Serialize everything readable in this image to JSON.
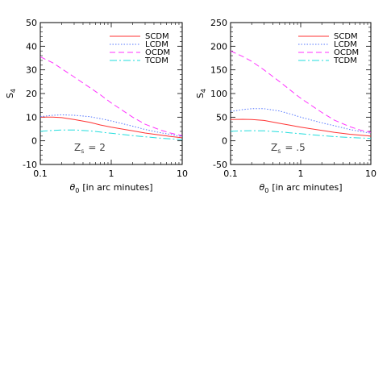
{
  "chart_data": [
    {
      "type": "line",
      "ylabel": "S",
      "ylabel_sub": "4",
      "xlabel_symbol": "θ",
      "xlabel_sub": "0",
      "xlabel_text": "[in arc minutes]",
      "xscale": "log",
      "xlim": [
        0.1,
        10
      ],
      "ylim": [
        -10,
        50
      ],
      "yticks": [
        -10,
        0,
        10,
        20,
        30,
        40,
        50
      ],
      "xticks": [
        0.1,
        1,
        10
      ],
      "xtick_labels": [
        "0.1",
        "1",
        "10"
      ],
      "annotation": {
        "var": "Z",
        "sub": "s",
        "text": "= 2"
      },
      "legend_position": "top-right",
      "series": [
        {
          "name": "SCDM",
          "color": "#ff3333",
          "dash": "",
          "x": [
            0.1,
            0.15,
            0.2,
            0.3,
            0.5,
            0.7,
            1,
            2,
            3,
            5,
            7,
            10
          ],
          "y": [
            10,
            10,
            9.8,
            9,
            7.8,
            6.7,
            5.8,
            4.2,
            3.3,
            2.4,
            1.8,
            1.3
          ]
        },
        {
          "name": "LCDM",
          "color": "#5577ff",
          "dash": "1.5,2",
          "x": [
            0.1,
            0.15,
            0.2,
            0.3,
            0.5,
            0.7,
            1,
            2,
            3,
            5,
            7,
            10
          ],
          "y": [
            10.2,
            10.8,
            11,
            10.8,
            10.2,
            9.4,
            8.4,
            6.2,
            4.8,
            3.4,
            2.6,
            1.8
          ]
        },
        {
          "name": "OCDM",
          "color": "#ff33ff",
          "dash": "7,4",
          "x": [
            0.1,
            0.15,
            0.2,
            0.3,
            0.5,
            0.7,
            1,
            2,
            3,
            5,
            7,
            10
          ],
          "y": [
            35.5,
            33,
            30.5,
            27,
            22.5,
            19.5,
            16,
            10,
            7,
            4.5,
            3.2,
            2.2
          ]
        },
        {
          "name": "TCDM",
          "color": "#22dddd",
          "dash": "9,3,2,3",
          "x": [
            0.1,
            0.15,
            0.2,
            0.3,
            0.5,
            0.7,
            1,
            2,
            3,
            5,
            7,
            10
          ],
          "y": [
            4,
            4.4,
            4.6,
            4.6,
            4.2,
            3.7,
            3.2,
            2.2,
            1.7,
            1.1,
            0.8,
            0.5
          ]
        }
      ]
    },
    {
      "type": "line",
      "ylabel": "S",
      "ylabel_sub": "4",
      "xlabel_symbol": "θ",
      "xlabel_sub": "0",
      "xlabel_text": "[in arc minutes]",
      "xscale": "log",
      "xlim": [
        0.1,
        10
      ],
      "ylim": [
        -50,
        250
      ],
      "yticks": [
        -50,
        0,
        50,
        100,
        150,
        200,
        250
      ],
      "xticks": [
        0.1,
        1,
        10
      ],
      "xtick_labels": [
        "0.1",
        "1",
        "10"
      ],
      "annotation": {
        "var": "Z",
        "sub": "s",
        "text": "= .5"
      },
      "legend_position": "top-right",
      "series": [
        {
          "name": "SCDM",
          "color": "#ff3333",
          "dash": "",
          "x": [
            0.1,
            0.15,
            0.2,
            0.3,
            0.5,
            0.7,
            1,
            2,
            3,
            5,
            7,
            10
          ],
          "y": [
            45,
            45.5,
            45,
            43,
            37,
            33,
            29,
            22,
            18,
            14,
            12,
            10
          ]
        },
        {
          "name": "LCDM",
          "color": "#5577ff",
          "dash": "1.5,2",
          "x": [
            0.1,
            0.15,
            0.2,
            0.3,
            0.5,
            0.7,
            1,
            2,
            3,
            5,
            7,
            10
          ],
          "y": [
            62,
            66,
            68,
            68,
            63,
            57,
            50,
            38,
            32,
            24,
            20,
            16
          ]
        },
        {
          "name": "OCDM",
          "color": "#ff33ff",
          "dash": "7,4",
          "x": [
            0.1,
            0.15,
            0.2,
            0.3,
            0.5,
            0.7,
            1,
            2,
            3,
            5,
            7,
            10
          ],
          "y": [
            190,
            178,
            168,
            150,
            125,
            108,
            90,
            60,
            44,
            30,
            23,
            18
          ]
        },
        {
          "name": "TCDM",
          "color": "#22dddd",
          "dash": "9,3,2,3",
          "x": [
            0.1,
            0.15,
            0.2,
            0.3,
            0.5,
            0.7,
            1,
            2,
            3,
            5,
            7,
            10
          ],
          "y": [
            20,
            21,
            21.5,
            21,
            19,
            17,
            15,
            11,
            9,
            7,
            6,
            5
          ]
        }
      ]
    }
  ]
}
